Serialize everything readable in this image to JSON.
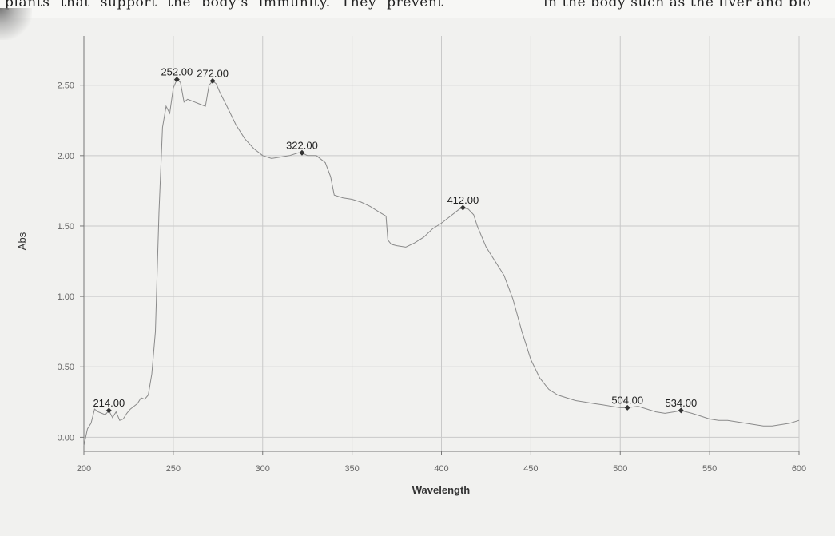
{
  "page": {
    "top_left_text": "plants that support the body's immunity. They prevent",
    "top_right_text": "in the body such as the liver and blo"
  },
  "chart_data": {
    "type": "line",
    "title": "",
    "xlabel": "Wavelength",
    "ylabel": "Abs",
    "xlim": [
      200,
      600
    ],
    "ylim": [
      -0.1,
      2.85
    ],
    "grid": true,
    "x_ticks": [
      {
        "value": 200,
        "label": "200"
      },
      {
        "value": 250,
        "label": "250"
      },
      {
        "value": 300,
        "label": "300"
      },
      {
        "value": 350,
        "label": "350"
      },
      {
        "value": 400,
        "label": "400"
      },
      {
        "value": 450,
        "label": "450"
      },
      {
        "value": 500,
        "label": "500"
      },
      {
        "value": 550,
        "label": "550"
      },
      {
        "value": 600,
        "label": "600"
      }
    ],
    "y_ticks": [
      {
        "value": 0.0,
        "label": "0.00"
      },
      {
        "value": 0.5,
        "label": "0.50"
      },
      {
        "value": 1.0,
        "label": "1.00"
      },
      {
        "value": 1.5,
        "label": "1.50"
      },
      {
        "value": 2.0,
        "label": "2.00"
      },
      {
        "value": 2.5,
        "label": "2.50"
      }
    ],
    "series": [
      {
        "x": [
          200,
          202,
          204,
          206,
          208,
          210,
          212,
          214,
          216,
          218,
          220,
          222,
          224,
          226,
          228,
          230,
          232,
          234,
          236,
          238,
          240,
          242,
          244,
          246,
          248,
          250,
          252,
          254,
          256,
          258,
          260,
          262,
          264,
          266,
          268,
          270,
          272,
          274,
          276,
          280,
          285,
          290,
          295,
          300,
          305,
          310,
          315,
          320,
          322,
          325,
          330,
          335,
          338,
          340,
          345,
          350,
          355,
          360,
          365,
          369,
          370,
          372,
          375,
          380,
          385,
          390,
          395,
          400,
          405,
          410,
          412,
          415,
          418,
          420,
          425,
          430,
          435,
          440,
          445,
          450,
          455,
          460,
          465,
          470,
          475,
          480,
          485,
          490,
          495,
          500,
          504,
          510,
          515,
          520,
          525,
          530,
          534,
          540,
          545,
          550,
          555,
          560,
          565,
          570,
          575,
          580,
          585,
          590,
          595,
          600
        ],
        "y": [
          -0.06,
          0.06,
          0.1,
          0.2,
          0.18,
          0.17,
          0.16,
          0.19,
          0.14,
          0.18,
          0.12,
          0.13,
          0.17,
          0.2,
          0.22,
          0.24,
          0.28,
          0.27,
          0.3,
          0.45,
          0.75,
          1.6,
          2.2,
          2.35,
          2.3,
          2.48,
          2.54,
          2.52,
          2.38,
          2.4,
          2.39,
          2.38,
          2.37,
          2.36,
          2.35,
          2.5,
          2.53,
          2.51,
          2.45,
          2.35,
          2.22,
          2.12,
          2.05,
          2.0,
          1.98,
          1.99,
          2.0,
          2.02,
          2.02,
          2.0,
          2.0,
          1.95,
          1.85,
          1.72,
          1.7,
          1.69,
          1.67,
          1.64,
          1.6,
          1.57,
          1.4,
          1.37,
          1.36,
          1.35,
          1.38,
          1.42,
          1.48,
          1.52,
          1.57,
          1.62,
          1.63,
          1.62,
          1.58,
          1.5,
          1.35,
          1.25,
          1.15,
          0.98,
          0.75,
          0.55,
          0.42,
          0.34,
          0.3,
          0.28,
          0.26,
          0.25,
          0.24,
          0.23,
          0.22,
          0.21,
          0.21,
          0.22,
          0.2,
          0.18,
          0.17,
          0.18,
          0.19,
          0.17,
          0.15,
          0.13,
          0.12,
          0.12,
          0.11,
          0.1,
          0.09,
          0.08,
          0.08,
          0.09,
          0.1,
          0.12
        ]
      }
    ],
    "peaks": [
      {
        "x": 214,
        "y": 0.19,
        "label": "214.00"
      },
      {
        "x": 252,
        "y": 2.54,
        "label": "252.00"
      },
      {
        "x": 272,
        "y": 2.53,
        "label": "272.00"
      },
      {
        "x": 322,
        "y": 2.02,
        "label": "322.00"
      },
      {
        "x": 412,
        "y": 1.63,
        "label": "412.00"
      },
      {
        "x": 504,
        "y": 0.21,
        "label": "504.00"
      },
      {
        "x": 534,
        "y": 0.19,
        "label": "534.00"
      }
    ]
  }
}
